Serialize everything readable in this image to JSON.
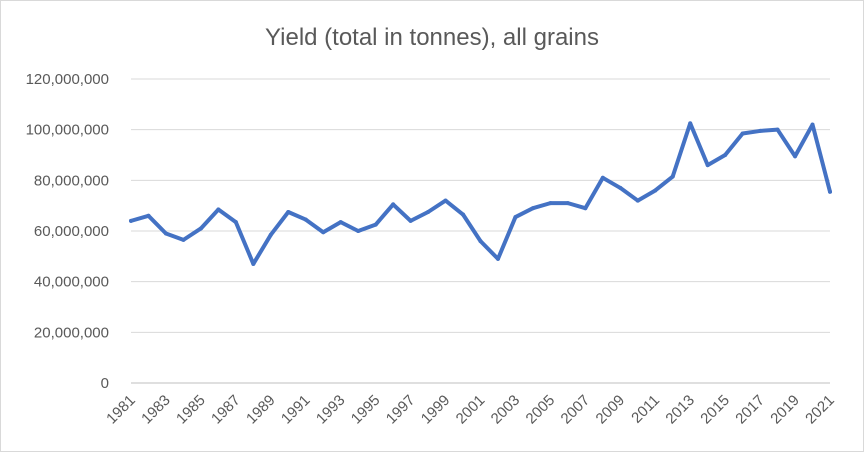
{
  "chart_data": {
    "type": "line",
    "title": "Yield (total in tonnes), all grains",
    "xlabel": "",
    "ylabel": "",
    "ylim": [
      0,
      120000000
    ],
    "y_ticks": [
      0,
      20000000,
      40000000,
      60000000,
      80000000,
      100000000,
      120000000
    ],
    "y_tick_labels": [
      "0",
      "20,000,000",
      "40,000,000",
      "60,000,000",
      "80,000,000",
      "100,000,000",
      "120,000,000"
    ],
    "x": [
      1981,
      1982,
      1983,
      1984,
      1985,
      1986,
      1987,
      1988,
      1989,
      1990,
      1991,
      1992,
      1993,
      1994,
      1995,
      1996,
      1997,
      1998,
      1999,
      2000,
      2001,
      2002,
      2003,
      2004,
      2005,
      2006,
      2007,
      2008,
      2009,
      2010,
      2011,
      2012,
      2013,
      2014,
      2015,
      2016,
      2017,
      2018,
      2019,
      2020,
      2021
    ],
    "x_tick_labels": [
      "1981",
      "1983",
      "1985",
      "1987",
      "1989",
      "1991",
      "1993",
      "1995",
      "1997",
      "1999",
      "2001",
      "2003",
      "2005",
      "2007",
      "2009",
      "2011",
      "2013",
      "2015",
      "2017",
      "2019",
      "2021"
    ],
    "grid": true,
    "legend": "none",
    "series": [
      {
        "color": "#4472c4",
        "values": [
          64000000,
          66000000,
          59000000,
          56500000,
          61000000,
          68500000,
          63500000,
          47000000,
          58500000,
          67500000,
          64500000,
          59500000,
          63500000,
          60000000,
          62500000,
          70500000,
          64000000,
          67500000,
          72000000,
          66500000,
          56000000,
          49000000,
          65500000,
          69000000,
          71000000,
          71000000,
          69000000,
          81000000,
          77000000,
          72000000,
          76000000,
          81500000,
          102500000,
          86000000,
          90000000,
          98500000,
          99500000,
          100000000,
          89500000,
          102000000,
          75500000
        ]
      }
    ]
  }
}
